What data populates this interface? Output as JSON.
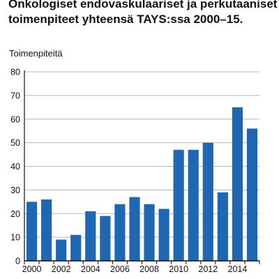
{
  "chart_data": {
    "type": "bar",
    "title_lines": [
      "Onkologiset endovaskulaariset ja perkutaaniset",
      "toimenpiteet yhteensä TAYS:ssa 2000–15."
    ],
    "ylabel": "Toimenpiteitä",
    "xlabel": "",
    "categories": [
      "2000",
      "2001",
      "2002",
      "2003",
      "2004",
      "2005",
      "2006",
      "2007",
      "2008",
      "2009",
      "2010",
      "2011",
      "2012",
      "2013",
      "2014",
      "2015"
    ],
    "x_tick_labels": [
      "2000",
      "2002",
      "2004",
      "2006",
      "2008",
      "2010",
      "2012",
      "2014"
    ],
    "y_ticks": [
      "0",
      "10",
      "20",
      "30",
      "40",
      "50",
      "60",
      "70",
      "80"
    ],
    "values": [
      25,
      26,
      9,
      11,
      21,
      19,
      24,
      27,
      24,
      22,
      47,
      47,
      50,
      29,
      65,
      56
    ],
    "ylim": [
      0,
      80
    ],
    "grid": "horizontal",
    "bar_color": "#1f66b3",
    "grid_color": "#b7b7b7",
    "axis_color": "#111111"
  }
}
